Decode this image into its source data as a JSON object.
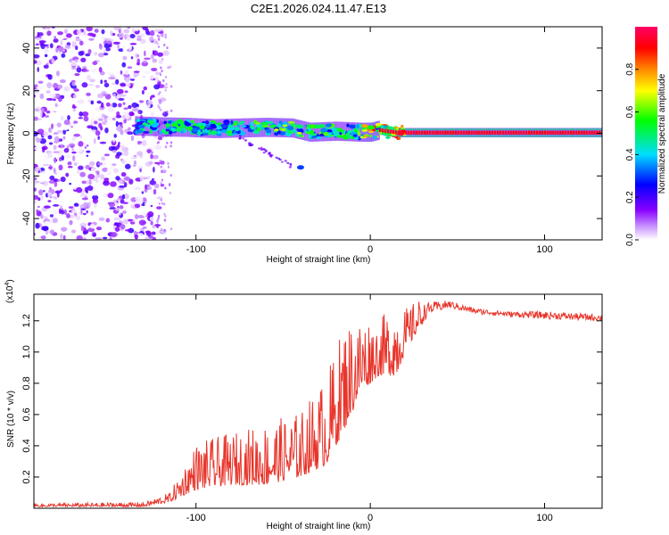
{
  "chart_data": [
    {
      "type": "heatmap",
      "title": "C2E1.2026.024.11.47.E13",
      "xlabel": "Height of straight line (km)",
      "ylabel": "Frequency (Hz)",
      "xlim": [
        -193,
        133
      ],
      "ylim": [
        -50,
        50
      ],
      "xticks": [
        -100,
        0,
        100
      ],
      "yticks": [
        -40,
        -20,
        0,
        20,
        40
      ],
      "colorbar": {
        "label": "Normalized spectral amplitude",
        "range": [
          0,
          1
        ],
        "ticks": [
          0.0,
          0.2,
          0.4,
          0.6,
          0.8
        ],
        "tick_labels": [
          "0.0",
          "0.2",
          "0.4",
          "0.6",
          "0.8"
        ],
        "colormap": [
          "#ffffff",
          "#9900ff",
          "#0000ff",
          "#00ffff",
          "#00ff00",
          "#ffff00",
          "#ff0000",
          "#ff00aa"
        ]
      },
      "noise_region_x": [
        -193,
        -120
      ],
      "signal_track": [
        {
          "x": -135,
          "freq": 3.5,
          "amp": 0.45
        },
        {
          "x": -120,
          "freq": 3.0,
          "amp": 0.55
        },
        {
          "x": -105,
          "freq": 2.8,
          "amp": 0.55
        },
        {
          "x": -90,
          "freq": 2.2,
          "amp": 0.5
        },
        {
          "x": -75,
          "freq": 2.5,
          "amp": 0.55
        },
        {
          "x": -60,
          "freq": 2.8,
          "amp": 0.6
        },
        {
          "x": -45,
          "freq": 2.5,
          "amp": 0.65
        },
        {
          "x": -35,
          "freq": 0.5,
          "amp": 0.6
        },
        {
          "x": -20,
          "freq": 1.0,
          "amp": 0.55
        },
        {
          "x": -5,
          "freq": 0.5,
          "amp": 0.6
        },
        {
          "x": 0,
          "freq": 0.5,
          "amp": 0.9
        },
        {
          "x": 5,
          "freq": 1.5,
          "amp": 0.7
        },
        {
          "x": 15,
          "freq": 0.3,
          "amp": 0.95
        },
        {
          "x": 40,
          "freq": 0.3,
          "amp": 0.95
        },
        {
          "x": 80,
          "freq": 0.3,
          "amp": 0.95
        },
        {
          "x": 133,
          "freq": 0.3,
          "amp": 0.95
        }
      ],
      "isolated_blob": {
        "x": -40,
        "freq": -16,
        "amp": 0.3
      }
    },
    {
      "type": "line",
      "xlabel": "Height of straight line (km)",
      "ylabel": "SNR (10 * v/v)",
      "y_multiplier": "(x10",
      "y_multiplier_exp": "4",
      "y_multiplier_close": ")",
      "xlim": [
        -193,
        133
      ],
      "ylim": [
        0,
        1.37
      ],
      "xticks": [
        -100,
        0,
        100
      ],
      "yticks": [
        0.2,
        0.4,
        0.6,
        0.8,
        1.0,
        1.2
      ],
      "ytick_labels": [
        "0.2",
        "0.4",
        "0.6",
        "0.8",
        "1.0",
        "1.2"
      ],
      "color": "#e8352b",
      "envelope": {
        "x": [
          -193,
          -130,
          -115,
          -100,
          -80,
          -60,
          -40,
          -25,
          -15,
          -5,
          5,
          15,
          20,
          28,
          35,
          45,
          60,
          80,
          100,
          133
        ],
        "base": [
          0.01,
          0.01,
          0.04,
          0.12,
          0.15,
          0.15,
          0.2,
          0.28,
          0.5,
          0.75,
          0.85,
          0.85,
          1.0,
          1.15,
          1.25,
          1.3,
          1.27,
          1.25,
          1.23,
          1.22
        ],
        "peak": [
          0.03,
          0.04,
          0.1,
          0.42,
          0.48,
          0.55,
          0.62,
          0.86,
          1.2,
          1.25,
          1.2,
          1.36,
          1.28,
          1.34,
          1.36,
          1.37,
          1.32,
          1.3,
          1.3,
          1.28
        ]
      }
    }
  ]
}
